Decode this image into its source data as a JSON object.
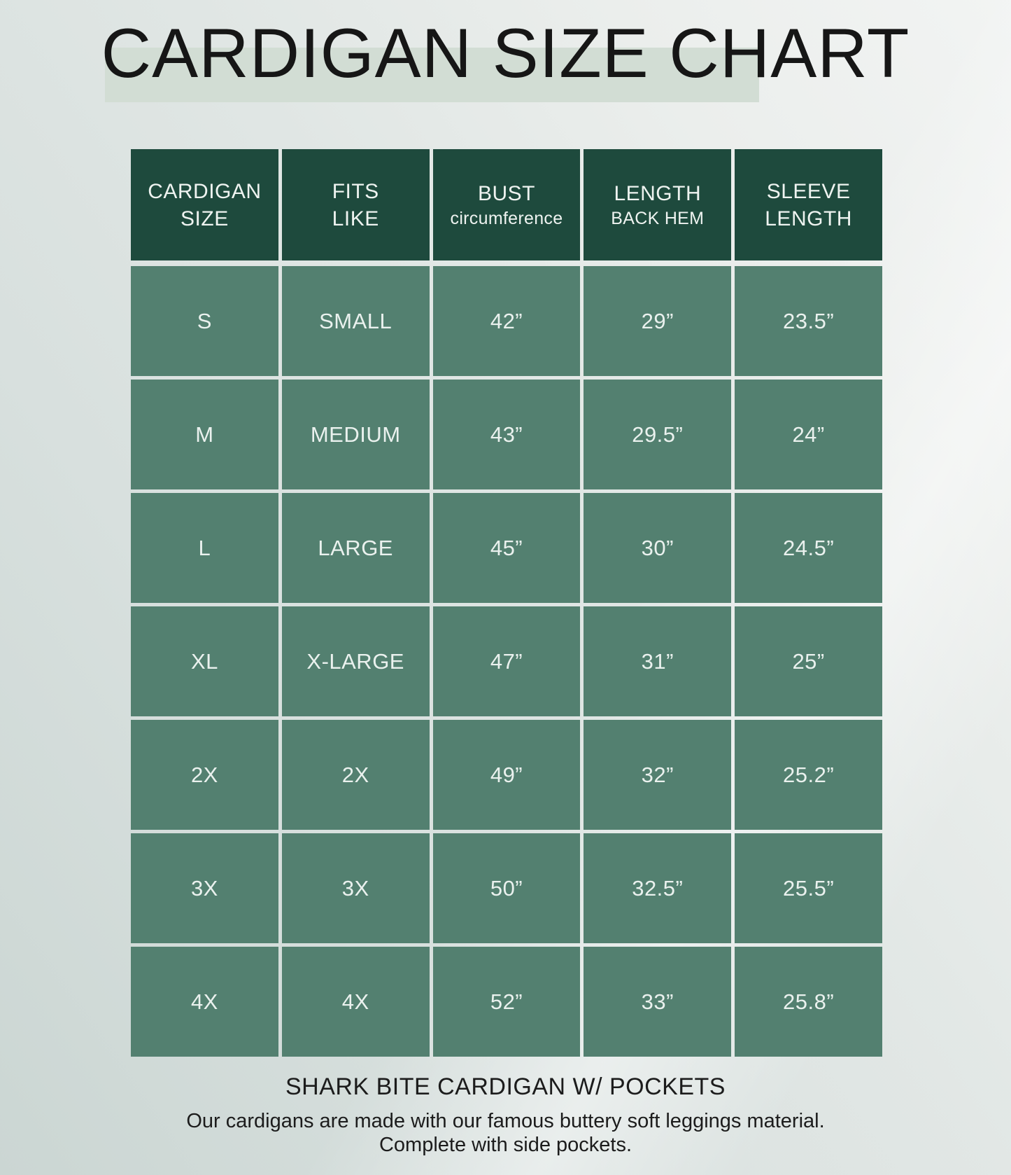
{
  "title": "CARDIGAN SIZE CHART",
  "chart_data": {
    "type": "table",
    "title": "CARDIGAN SIZE CHART",
    "columns": [
      "CARDIGAN SIZE",
      "FITS LIKE",
      "BUST circumference",
      "LENGTH BACK HEM",
      "SLEEVE LENGTH"
    ],
    "rows": [
      [
        "S",
        "SMALL",
        "42”",
        "29”",
        "23.5”"
      ],
      [
        "M",
        "MEDIUM",
        "43”",
        "29.5”",
        "24”"
      ],
      [
        "L",
        "LARGE",
        "45”",
        "30”",
        "24.5”"
      ],
      [
        "XL",
        "X-LARGE",
        "47”",
        "31”",
        "25”"
      ],
      [
        "2X",
        "2X",
        "49”",
        "32”",
        "25.2”"
      ],
      [
        "3X",
        "3X",
        "50”",
        "32.5”",
        "25.5”"
      ],
      [
        "4X",
        "4X",
        "52”",
        "33”",
        "25.8”"
      ]
    ]
  },
  "table": {
    "headers": [
      {
        "line1": "CARDIGAN",
        "line2": "SIZE"
      },
      {
        "line1": "FITS",
        "line2": "LIKE"
      },
      {
        "line1": "BUST",
        "line2": "circumference"
      },
      {
        "line1": "LENGTH",
        "line2": "BACK HEM"
      },
      {
        "line1": "SLEEVE",
        "line2": "LENGTH"
      }
    ]
  },
  "footer": {
    "product": "SHARK BITE CARDIGAN W/ POCKETS",
    "description_line1": "Our cardigans are made with our famous buttery soft leggings material.",
    "description_line2": "Complete with side pockets."
  },
  "colors": {
    "header-bg": "#1e4a3d",
    "cell-bg": "#538070",
    "header-text": "#eef3f0",
    "cell-text": "#eaf1ee",
    "title-text": "#161616",
    "highlight": "#d2ddd4",
    "separator": "#e8efec",
    "page-bg": "#dde4e2"
  }
}
